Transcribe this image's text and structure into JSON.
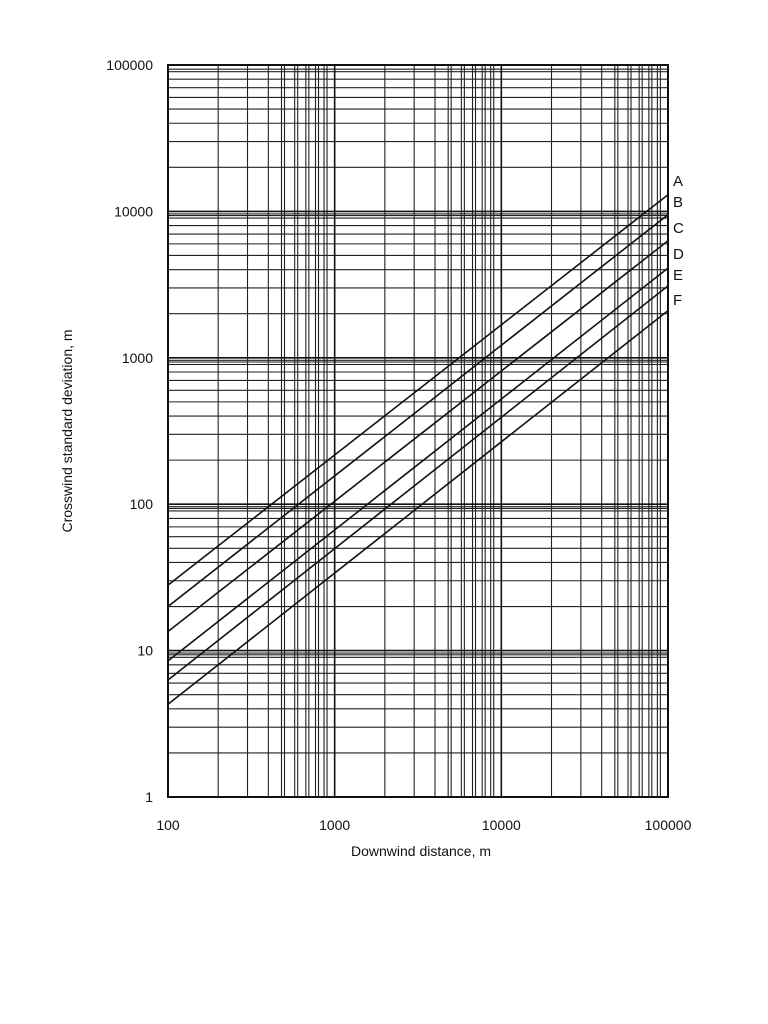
{
  "chart_data": {
    "type": "line",
    "xscale": "log",
    "yscale": "log",
    "xlabel": "Downwind distance, m",
    "ylabel": "Crosswind standard deviation, m",
    "xlim": [
      100,
      100000
    ],
    "ylim": [
      1,
      100000
    ],
    "grid": true,
    "x_ticks": [
      "100",
      "1000",
      "10000",
      "100000"
    ],
    "y_ticks": [
      "1",
      "10",
      "100",
      "1000",
      "10000",
      "100000"
    ],
    "series": [
      {
        "name": "A",
        "x": [
          100,
          100000
        ],
        "y": [
          28,
          13000
        ]
      },
      {
        "name": "B",
        "x": [
          100,
          100000
        ],
        "y": [
          20,
          9500
        ]
      },
      {
        "name": "C",
        "x": [
          100,
          100000
        ],
        "y": [
          13.5,
          6300
        ]
      },
      {
        "name": "D",
        "x": [
          100,
          100000
        ],
        "y": [
          8.5,
          4100
        ]
      },
      {
        "name": "E",
        "x": [
          100,
          100000
        ],
        "y": [
          6.3,
          3100
        ]
      },
      {
        "name": "F",
        "x": [
          100,
          100000
        ],
        "y": [
          4.3,
          2100
        ]
      }
    ]
  }
}
